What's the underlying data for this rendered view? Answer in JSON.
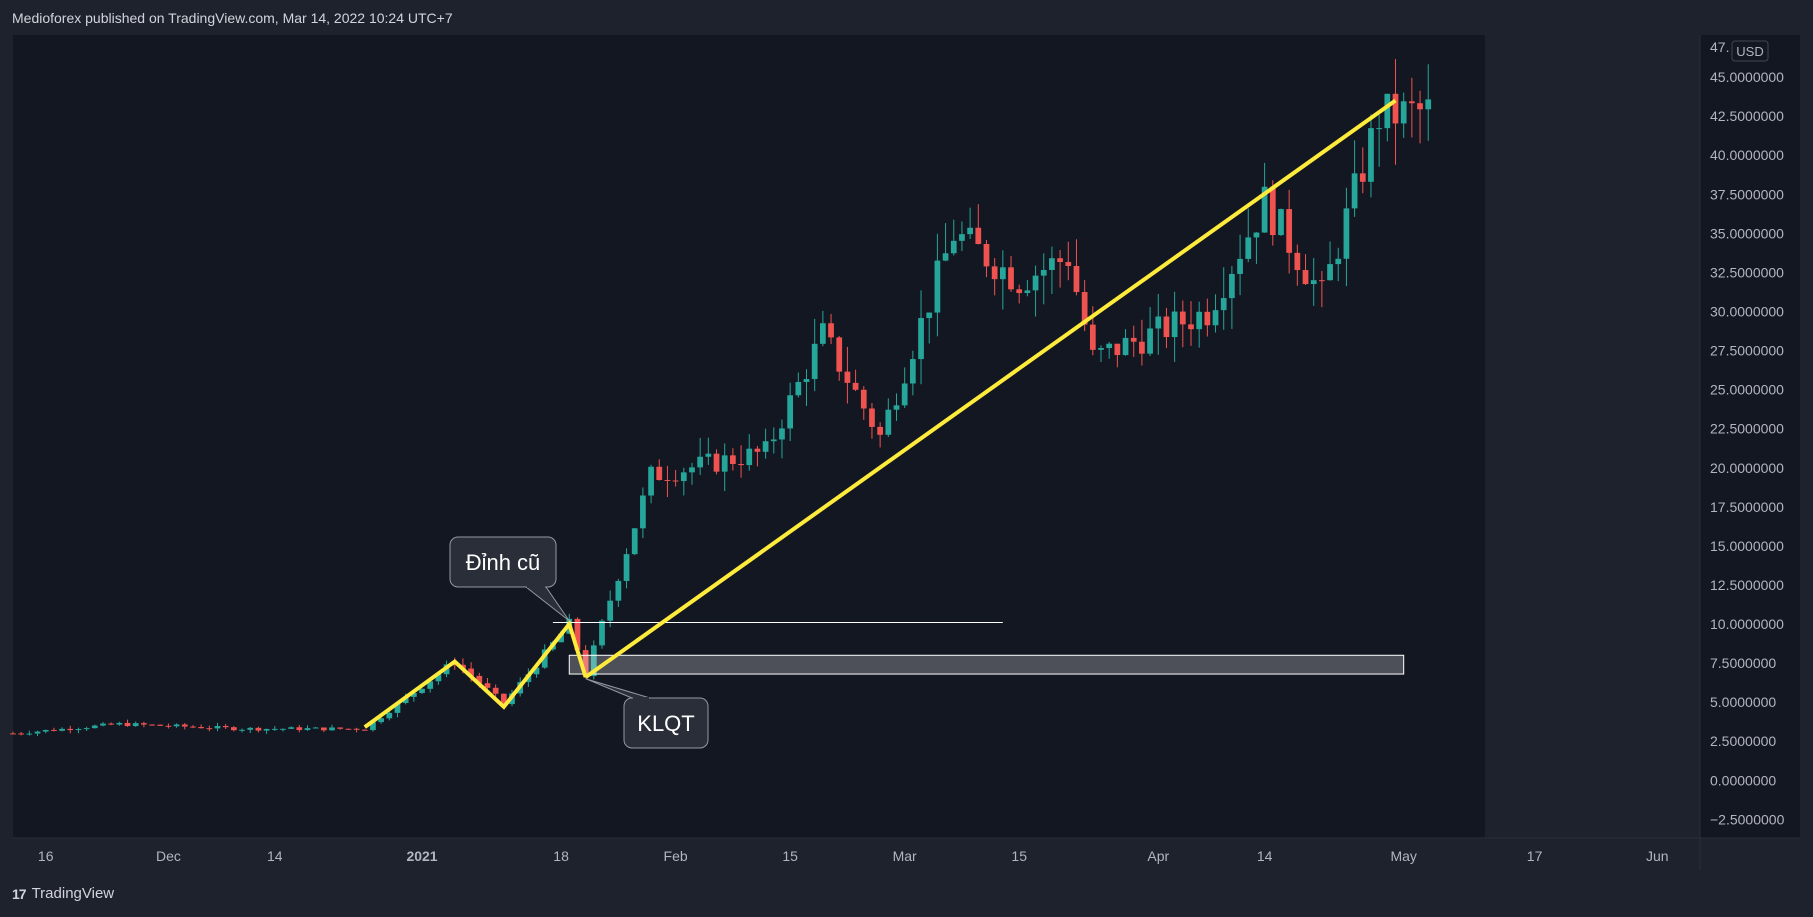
{
  "header": {
    "published_text": "Medioforex published on TradingView.com, Mar 14, 2022 10:24 UTC+7"
  },
  "footer": {
    "brand": "TradingView",
    "logo_icon": "tradingview-logo-icon"
  },
  "chart_data": {
    "type": "candlestick",
    "currency": "USD",
    "grid": false,
    "ylim": [
      -3.5,
      47.5
    ],
    "y_ticks": [
      {
        "value": 45,
        "label": "45.0000000"
      },
      {
        "value": 42.5,
        "label": "42.5000000"
      },
      {
        "value": 40,
        "label": "40.0000000"
      },
      {
        "value": 37.5,
        "label": "37.5000000"
      },
      {
        "value": 35,
        "label": "35.0000000"
      },
      {
        "value": 32.5,
        "label": "32.5000000"
      },
      {
        "value": 30,
        "label": "30.0000000"
      },
      {
        "value": 27.5,
        "label": "27.5000000"
      },
      {
        "value": 25,
        "label": "25.0000000"
      },
      {
        "value": 22.5,
        "label": "22.5000000"
      },
      {
        "value": 20,
        "label": "20.0000000"
      },
      {
        "value": 17.5,
        "label": "17.5000000"
      },
      {
        "value": 15,
        "label": "15.0000000"
      },
      {
        "value": 12.5,
        "label": "12.5000000"
      },
      {
        "value": 10,
        "label": "10.0000000"
      },
      {
        "value": 7.5,
        "label": "7.5000000"
      },
      {
        "value": 5,
        "label": "5.0000000"
      },
      {
        "value": 2.5,
        "label": "2.5000000"
      },
      {
        "value": 0,
        "label": "0.0000000"
      },
      {
        "value": -2.5,
        "label": "−2.5000000"
      }
    ],
    "x_start_date": "2020-11-12",
    "x_end_date": "2021-06-05",
    "x_ticks": [
      {
        "date": "2020-11-16",
        "label": "16",
        "bold": false
      },
      {
        "date": "2020-12-01",
        "label": "Dec",
        "bold": false
      },
      {
        "date": "2020-12-14",
        "label": "14",
        "bold": false
      },
      {
        "date": "2021-01-01",
        "label": "2021",
        "bold": true
      },
      {
        "date": "2021-01-18",
        "label": "18",
        "bold": false
      },
      {
        "date": "2021-02-01",
        "label": "Feb",
        "bold": false
      },
      {
        "date": "2021-02-15",
        "label": "15",
        "bold": false
      },
      {
        "date": "2021-03-01",
        "label": "Mar",
        "bold": false
      },
      {
        "date": "2021-03-15",
        "label": "15",
        "bold": false
      },
      {
        "date": "2021-04-01",
        "label": "Apr",
        "bold": false
      },
      {
        "date": "2021-04-14",
        "label": "14",
        "bold": false
      },
      {
        "date": "2021-05-01",
        "label": "May",
        "bold": false
      },
      {
        "date": "2021-05-17",
        "label": "17",
        "bold": false
      },
      {
        "date": "2021-06-01",
        "label": "Jun",
        "bold": false
      }
    ],
    "colors": {
      "up": "#26a69a",
      "down": "#ef5350",
      "trendline": "#ffeb3b",
      "background": "#131722",
      "axis_text": "#b2b5be"
    },
    "anchors": [
      {
        "date": "2020-11-12",
        "value": 3.0
      },
      {
        "date": "2020-11-25",
        "value": 3.6
      },
      {
        "date": "2020-12-10",
        "value": 3.3
      },
      {
        "date": "2020-12-25",
        "value": 3.3
      },
      {
        "date": "2021-01-05",
        "value": 7.6
      },
      {
        "date": "2021-01-11",
        "value": 4.9
      },
      {
        "date": "2021-01-19",
        "value": 10.0
      },
      {
        "date": "2021-01-21",
        "value": 6.8
      },
      {
        "date": "2021-01-29",
        "value": 19.5
      },
      {
        "date": "2021-02-12",
        "value": 21.0
      },
      {
        "date": "2021-02-19",
        "value": 28.5
      },
      {
        "date": "2021-02-26",
        "value": 22.0
      },
      {
        "date": "2021-03-07",
        "value": 35.0
      },
      {
        "date": "2021-03-15",
        "value": 32.0
      },
      {
        "date": "2021-03-21",
        "value": 33.5
      },
      {
        "date": "2021-03-24",
        "value": 27.0
      },
      {
        "date": "2021-04-07",
        "value": 30.0
      },
      {
        "date": "2021-04-14",
        "value": 37.0
      },
      {
        "date": "2021-04-21",
        "value": 31.0
      },
      {
        "date": "2021-04-28",
        "value": 42.5
      },
      {
        "date": "2021-05-04",
        "value": 42.8
      }
    ],
    "trendlines": [
      {
        "points": [
          {
            "date": "2020-12-25",
            "value": 3.4
          },
          {
            "date": "2021-01-05",
            "value": 7.6
          },
          {
            "date": "2021-01-11",
            "value": 4.7
          },
          {
            "date": "2021-01-19",
            "value": 10.0
          },
          {
            "date": "2021-01-21",
            "value": 6.6
          }
        ]
      },
      {
        "points": [
          {
            "date": "2021-01-21",
            "value": 6.6
          },
          {
            "date": "2021-04-30",
            "value": 43.5
          }
        ]
      }
    ],
    "horizontal_line": {
      "start": "2021-01-17",
      "end": "2021-03-13",
      "value": 10.1
    },
    "zone": {
      "start": "2021-01-19",
      "end": "2021-05-01",
      "low": 6.8,
      "high": 8.0
    },
    "annotations": [
      {
        "text": "Đỉnh cũ",
        "target_date": "2021-01-19",
        "target_value": 10.2
      },
      {
        "text": "KLQT",
        "target_date": "2021-01-21",
        "target_value": 6.5
      }
    ]
  }
}
